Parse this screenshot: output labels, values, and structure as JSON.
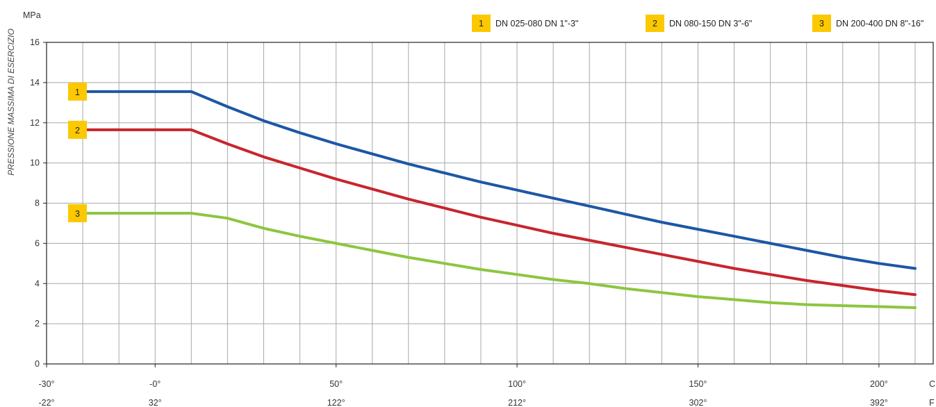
{
  "chart_data": {
    "type": "line",
    "y_unit": "MPa",
    "ylabel": "PRESSIONE MASSIMA DI ESERCIZIO",
    "ylim": [
      0,
      16
    ],
    "y_ticks": [
      "0",
      "2",
      "4",
      "6",
      "8",
      "10",
      "12",
      "14",
      "16"
    ],
    "xlim": [
      -30,
      215
    ],
    "x_unit_c": "C",
    "x_unit_f": "F",
    "x_ticks_c": [
      {
        "value": -30,
        "label": "-30°"
      },
      {
        "value": 0,
        "label": "-0°"
      },
      {
        "value": 50,
        "label": "50°"
      },
      {
        "value": 100,
        "label": "100°"
      },
      {
        "value": 150,
        "label": "150°"
      },
      {
        "value": 200,
        "label": "200°"
      }
    ],
    "x_ticks_f": [
      {
        "value": -30,
        "label": "-22°"
      },
      {
        "value": 0,
        "label": "32°"
      },
      {
        "value": 50,
        "label": "122°"
      },
      {
        "value": 100,
        "label": "212°"
      },
      {
        "value": 150,
        "label": "302°"
      },
      {
        "value": 200,
        "label": "392°"
      }
    ],
    "grid": true,
    "legend_position": "top-right",
    "series": [
      {
        "badge": "1",
        "name": "DN 025-080  DN 1\"-3\"",
        "color": "#1c57a5",
        "x": [
          -20,
          10,
          20,
          30,
          40,
          50,
          60,
          70,
          80,
          90,
          100,
          110,
          120,
          130,
          140,
          150,
          160,
          170,
          180,
          190,
          200,
          210
        ],
        "y": [
          13.55,
          13.55,
          12.8,
          12.1,
          11.5,
          10.95,
          10.45,
          9.95,
          9.5,
          9.05,
          8.65,
          8.25,
          7.85,
          7.45,
          7.05,
          6.7,
          6.35,
          6.0,
          5.65,
          5.3,
          5.0,
          4.75
        ]
      },
      {
        "badge": "2",
        "name": "DN 080-150  DN 3\"-6\"",
        "color": "#c8252c",
        "x": [
          -20,
          10,
          20,
          30,
          40,
          50,
          60,
          70,
          80,
          90,
          100,
          110,
          120,
          130,
          140,
          150,
          160,
          170,
          180,
          190,
          200,
          210
        ],
        "y": [
          11.65,
          11.65,
          10.95,
          10.3,
          9.75,
          9.2,
          8.7,
          8.2,
          7.75,
          7.3,
          6.9,
          6.5,
          6.15,
          5.8,
          5.45,
          5.1,
          4.75,
          4.45,
          4.15,
          3.9,
          3.65,
          3.45
        ]
      },
      {
        "badge": "3",
        "name": "DN 200-400  DN 8\"-16\"",
        "color": "#8dc63f",
        "x": [
          -20,
          10,
          20,
          30,
          40,
          50,
          60,
          70,
          80,
          90,
          100,
          110,
          120,
          130,
          140,
          150,
          160,
          170,
          180,
          190,
          200,
          210
        ],
        "y": [
          7.5,
          7.5,
          7.25,
          6.75,
          6.35,
          6.0,
          5.65,
          5.3,
          5.0,
          4.7,
          4.45,
          4.2,
          4.0,
          3.75,
          3.55,
          3.35,
          3.2,
          3.05,
          2.95,
          2.9,
          2.85,
          2.8
        ]
      }
    ]
  },
  "colors": {
    "badge_fill": "#fcc800",
    "grid": "#a8a8a8",
    "axis": "#222222"
  }
}
